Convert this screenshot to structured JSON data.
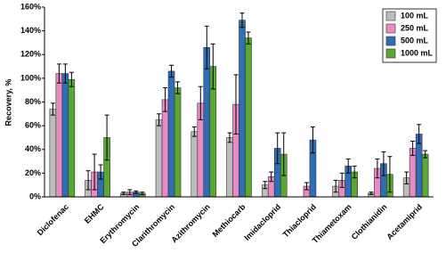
{
  "chart_data": {
    "type": "bar",
    "y_label": "Recovery, %",
    "categories": [
      "Diclofenac",
      "EHMC",
      "Erythromycin",
      "Clarithromycin",
      "Azithromycin",
      "Methiocarb",
      "Imidacloprid",
      "Thiacloprid",
      "Thiametoxam",
      "Clothianidin",
      "Acetamiprid"
    ],
    "series": [
      {
        "name": "100 mL",
        "color": "#bdbdbd",
        "values": [
          74,
          14,
          3,
          65,
          55,
          50,
          10,
          null,
          9,
          3,
          16
        ],
        "errors": [
          5,
          8,
          1,
          5,
          4,
          4,
          3,
          null,
          5,
          1,
          5
        ]
      },
      {
        "name": "250 mL",
        "color": "#e88bc4",
        "values": [
          104,
          21,
          4,
          82,
          79,
          78,
          17,
          9,
          14,
          24,
          41
        ],
        "errors": [
          8,
          15,
          2,
          10,
          14,
          25,
          4,
          3,
          6,
          8,
          6
        ]
      },
      {
        "name": "500 mL",
        "color": "#2f6db5",
        "values": [
          104,
          21,
          4,
          106,
          126,
          149,
          41,
          48,
          26,
          28,
          53
        ],
        "errors": [
          8,
          6,
          1,
          5,
          18,
          6,
          13,
          11,
          6,
          10,
          8
        ]
      },
      {
        "name": "1000 mL",
        "color": "#5aa832",
        "values": [
          99,
          50,
          3,
          92,
          110,
          134,
          36,
          null,
          21,
          19,
          36
        ],
        "errors": [
          6,
          19,
          1,
          5,
          19,
          5,
          18,
          null,
          5,
          15,
          3
        ]
      }
    ],
    "ylim": [
      0,
      160
    ],
    "yticks": [
      {
        "value": 0,
        "label": "0%"
      },
      {
        "value": 20,
        "label": "20%"
      },
      {
        "value": 40,
        "label": "40%"
      },
      {
        "value": 60,
        "label": "60%"
      },
      {
        "value": 80,
        "label": "80%"
      },
      {
        "value": 100,
        "label": "100%"
      },
      {
        "value": 120,
        "label": "120%"
      },
      {
        "value": 140,
        "label": "140%"
      },
      {
        "value": 160,
        "label": "160%"
      }
    ],
    "legend": "upper right"
  }
}
